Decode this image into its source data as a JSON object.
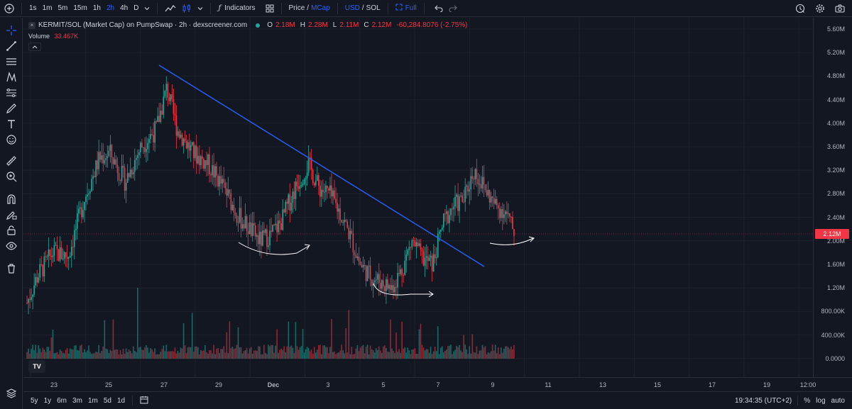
{
  "toolbar": {
    "intervals": [
      "1s",
      "1m",
      "5m",
      "15m",
      "1h",
      "2h",
      "4h",
      "D"
    ],
    "active_interval": "2h",
    "indicators_label": "Indicators",
    "price_label": "Price",
    "price_sep": "/",
    "mcap_label": "MCap",
    "usd_label": "USD",
    "sol_sep": "/",
    "sol_label": "SOL",
    "full_label": "Full"
  },
  "legend": {
    "symbol": "KERMIT/SOL (Market Cap) on PumpSwap · 2h · dexscreener.com",
    "o_key": "O",
    "o_val": "2.18M",
    "h_key": "H",
    "h_val": "2.28M",
    "l_key": "L",
    "l_val": "2.11M",
    "c_key": "C",
    "c_val": "2.12M",
    "change": "-60,284.8076 (-2.75%)",
    "volume_label": "Volume",
    "volume_value": "33.467K"
  },
  "price_axis": {
    "labels": [
      "5.60M",
      "5.20M",
      "4.80M",
      "4.40M",
      "4.00M",
      "3.60M",
      "3.20M",
      "2.80M",
      "2.40M",
      "2.00M",
      "1.60M",
      "1.20M",
      "800.00K",
      "400.00K",
      "0.0000"
    ],
    "current_price": "2.12M"
  },
  "time_axis": {
    "labels": [
      "23",
      "25",
      "27",
      "29",
      "Dec",
      "3",
      "5",
      "7",
      "9",
      "11",
      "13",
      "15",
      "17",
      "19",
      "12:00"
    ]
  },
  "bottom_bar": {
    "ranges": [
      "5y",
      "1y",
      "6m",
      "3m",
      "1m",
      "5d",
      "1d"
    ],
    "time": "19:34:35 (UTC+2)",
    "percent_label": "%",
    "log_label": "log",
    "auto_label": "auto"
  },
  "logo_text": "TV",
  "colors": {
    "up": "#26a69a",
    "down": "#f23645",
    "trendline": "#2962ff",
    "background": "#131722",
    "grid": "#1e222d"
  }
}
